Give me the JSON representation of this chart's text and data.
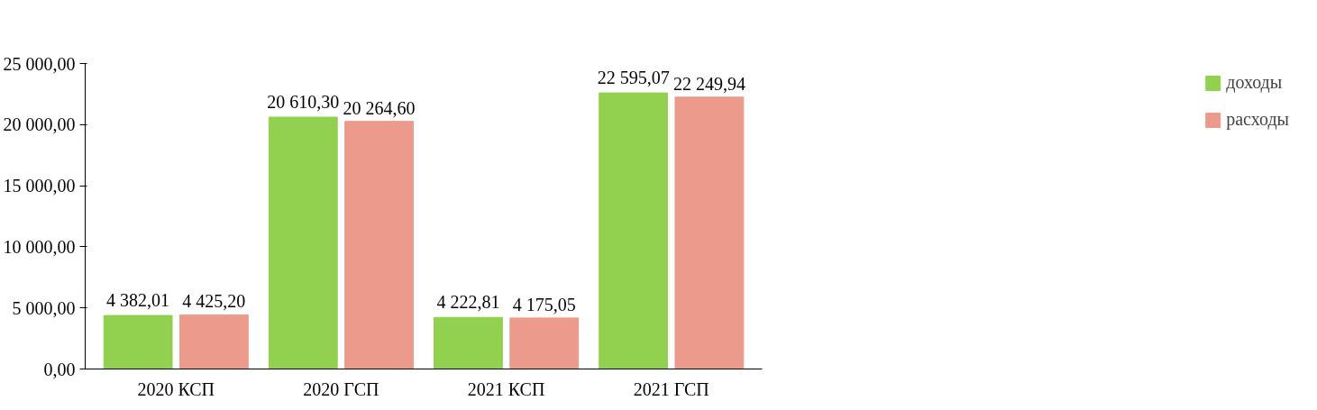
{
  "chart_data": {
    "type": "bar",
    "categories": [
      "2020 КСП",
      "2020 ГСП",
      "2021 КСП",
      "2021 ГСП"
    ],
    "series": [
      {
        "name": "доходы",
        "color": "#92d050",
        "values": [
          4382.01,
          20610.3,
          4222.81,
          22595.07
        ],
        "value_labels": [
          "4 382,01",
          "20 610,30",
          "4 222,81",
          "22 595,07"
        ]
      },
      {
        "name": "расходы",
        "color": "#ec9a8b",
        "values": [
          4425.2,
          20264.6,
          4175.05,
          22249.94
        ],
        "value_labels": [
          "4 425,20",
          "20 264,60",
          "4 175,05",
          "22 249,94"
        ]
      }
    ],
    "ylim": [
      0,
      25000
    ],
    "yticks": [
      {
        "value": 0,
        "label": "0,00"
      },
      {
        "value": 5000,
        "label": "5 000,00"
      },
      {
        "value": 10000,
        "label": "10 000,00"
      },
      {
        "value": 15000,
        "label": "15 000,00"
      },
      {
        "value": 20000,
        "label": "20 000,00"
      },
      {
        "value": 25000,
        "label": "25 000,00"
      }
    ],
    "grid": false,
    "legend": "right"
  }
}
